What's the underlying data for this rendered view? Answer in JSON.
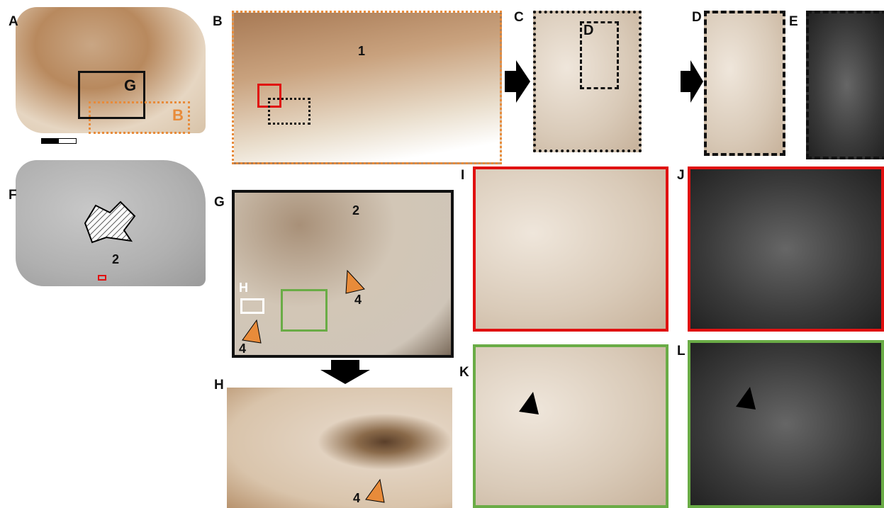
{
  "panels": [
    {
      "letter": "A",
      "labels": [
        "G",
        "B"
      ]
    },
    {
      "letter": "B",
      "labels": [
        "1"
      ]
    },
    {
      "letter": "C",
      "labels": [
        "D"
      ]
    },
    {
      "letter": "D",
      "labels": []
    },
    {
      "letter": "E",
      "labels": []
    },
    {
      "letter": "F",
      "labels": [
        "2"
      ]
    },
    {
      "letter": "G",
      "labels": [
        "2",
        "4",
        "H",
        "4"
      ]
    },
    {
      "letter": "H",
      "labels": [
        "4"
      ]
    },
    {
      "letter": "I",
      "labels": []
    },
    {
      "letter": "J",
      "labels": []
    },
    {
      "letter": "K",
      "labels": []
    },
    {
      "letter": "L",
      "labels": []
    }
  ]
}
